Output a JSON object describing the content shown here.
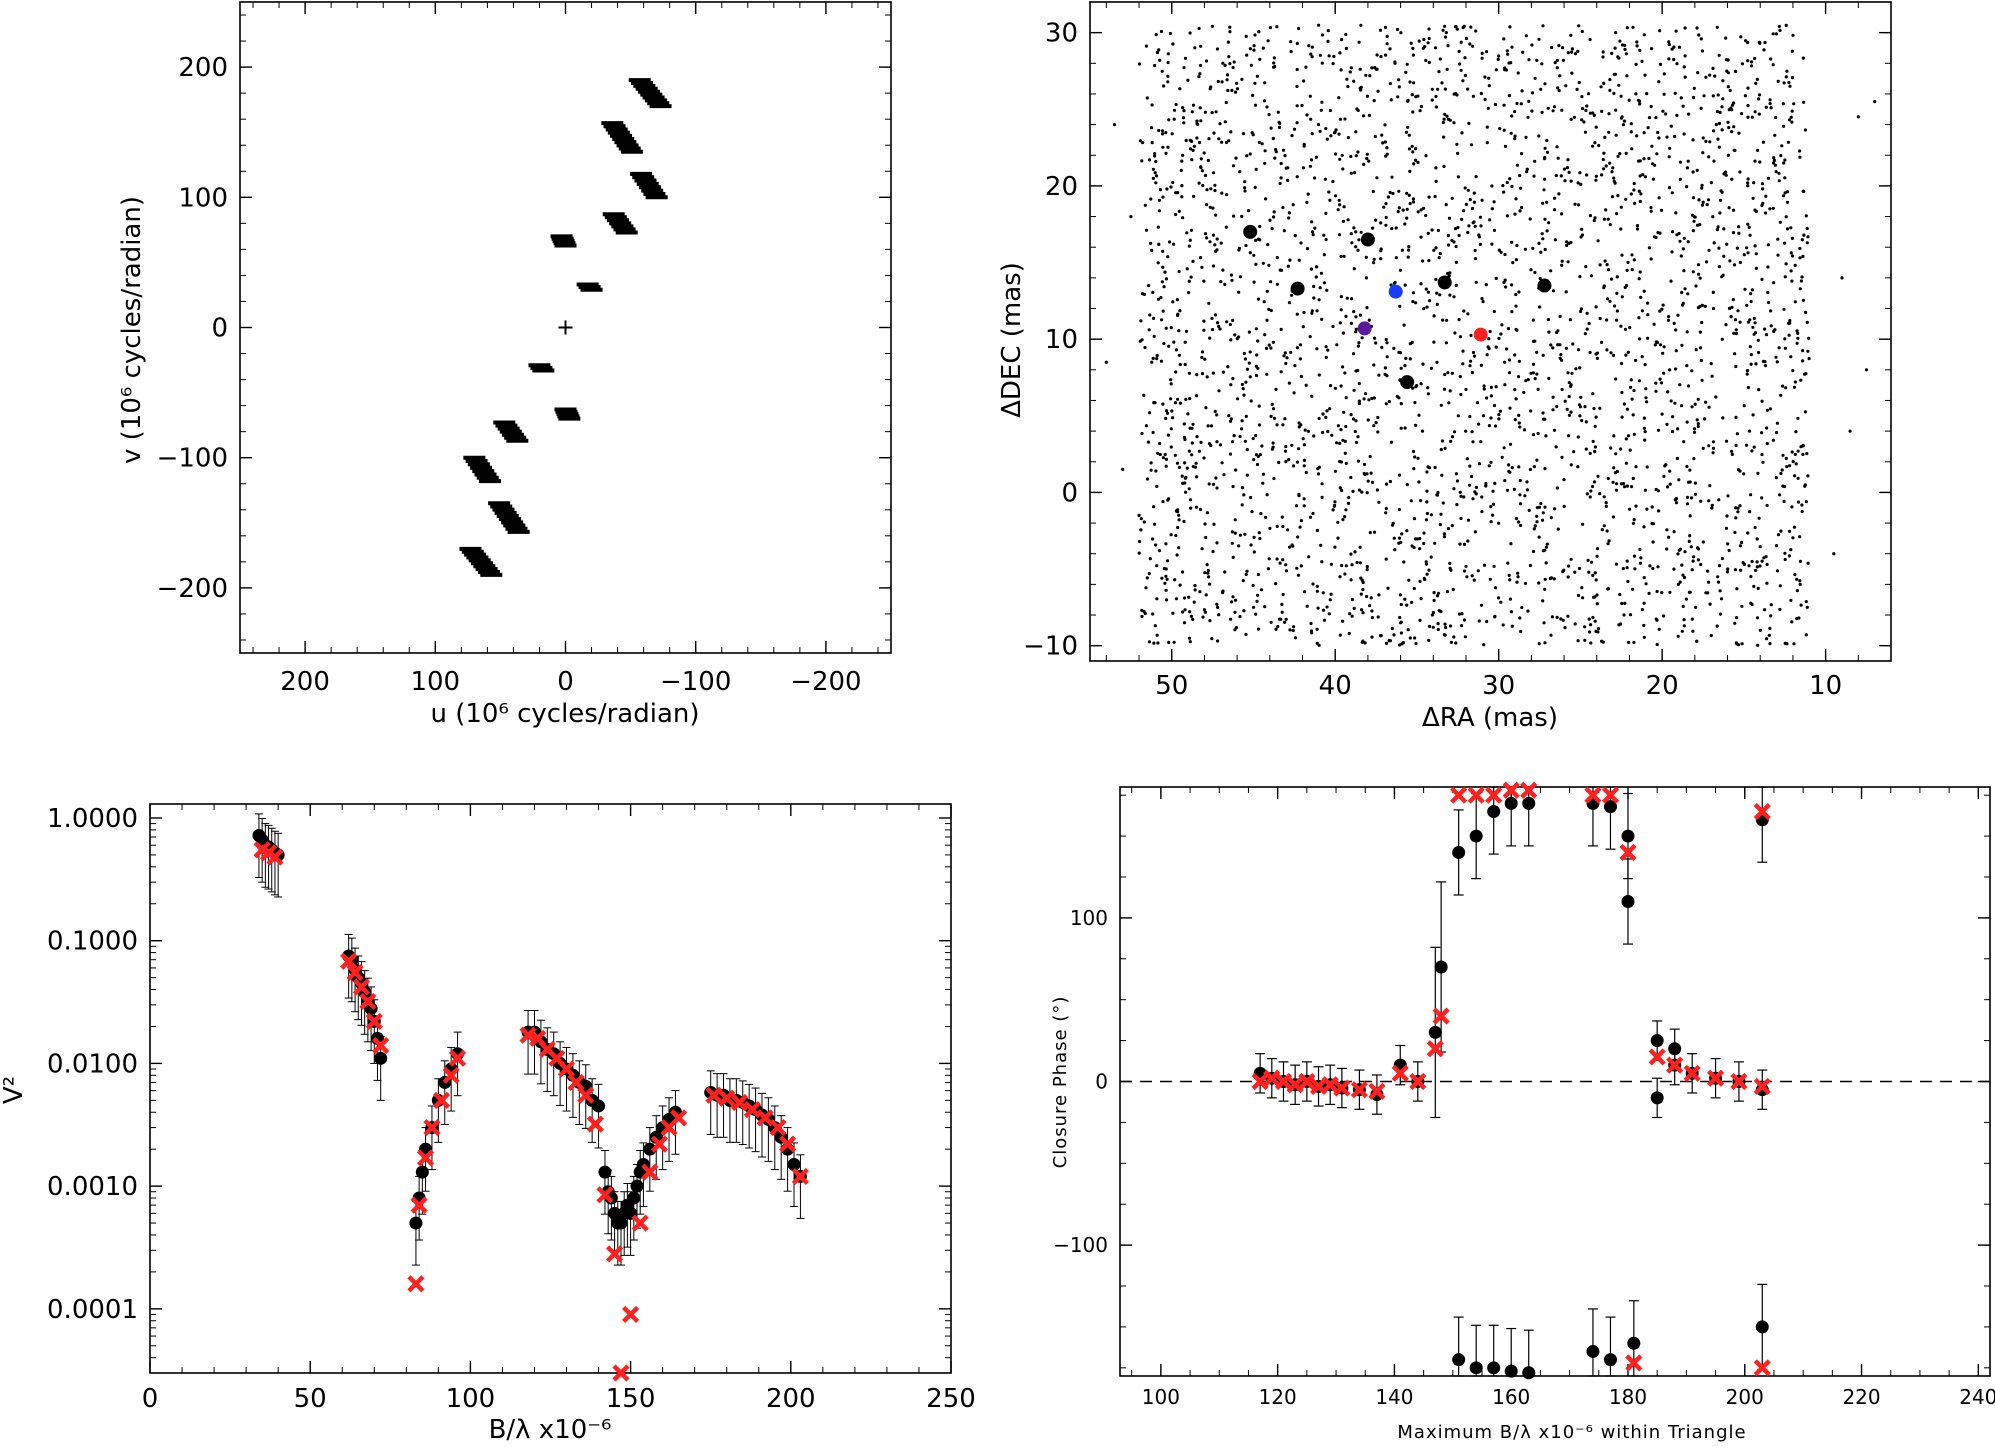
{
  "chart_data": [
    {
      "id": "uv",
      "type": "scatter",
      "xlabel": "u (10⁶ cycles/radian)",
      "ylabel": "v (10⁶ cycles/radian)",
      "xlim": [
        250,
        -250
      ],
      "ylim": [
        -250,
        250
      ],
      "xticks": [
        200,
        100,
        0,
        -100,
        -200
      ],
      "xtick_labels": [
        "200",
        "100",
        "0",
        "−100",
        "−200"
      ],
      "yticks": [
        -200,
        -100,
        0,
        100,
        200
      ],
      "ytick_labels": [
        "−200",
        "−100",
        "0",
        "100",
        "200"
      ],
      "center_marker": [
        0,
        0
      ],
      "groups": [
        {
          "u_range": [
            -73,
            -57
          ],
          "v_range": [
            170,
            190
          ],
          "n": 10
        },
        {
          "u_range": [
            -51,
            -36
          ],
          "v_range": [
            135,
            157
          ],
          "n": 10
        },
        {
          "u_range": [
            -70,
            -58
          ],
          "v_range": [
            100,
            118
          ],
          "n": 8
        },
        {
          "u_range": [
            -47,
            -37
          ],
          "v_range": [
            73,
            87
          ],
          "n": 7
        },
        {
          "u_range": [
            0,
            3
          ],
          "v_range": [
            63,
            70
          ],
          "n": 5
        },
        {
          "u_range": [
            -20,
            -17
          ],
          "v_range": [
            29,
            33
          ],
          "n": 3
        },
        {
          "u_range": [
            17,
            20
          ],
          "v_range": [
            -33,
            -29
          ],
          "n": 3
        },
        {
          "u_range": [
            -3,
            0
          ],
          "v_range": [
            -70,
            -63
          ],
          "n": 5
        },
        {
          "u_range": [
            37,
            47
          ],
          "v_range": [
            -87,
            -73
          ],
          "n": 7
        },
        {
          "u_range": [
            58,
            70
          ],
          "v_range": [
            -118,
            -100
          ],
          "n": 8
        },
        {
          "u_range": [
            36,
            51
          ],
          "v_range": [
            -157,
            -135
          ],
          "n": 10
        },
        {
          "u_range": [
            57,
            73
          ],
          "v_range": [
            -190,
            -170
          ],
          "n": 10
        }
      ]
    },
    {
      "id": "search",
      "type": "scatter",
      "xlabel": "ΔRA (mas)",
      "ylabel": "ΔDEC (mas)",
      "xlim": [
        55,
        6
      ],
      "ylim": [
        -11,
        32
      ],
      "xticks": [
        50,
        40,
        30,
        20,
        10
      ],
      "yticks": [
        -10,
        0,
        10,
        20,
        30
      ],
      "background_grid": {
        "ra_range": [
          11,
          52
        ],
        "dec_range": [
          -10,
          30.5
        ],
        "n_points": 3000,
        "point_color": "#000000"
      },
      "highlight_points": [
        {
          "ra": 45.2,
          "dec": 17.0,
          "color": "#000000"
        },
        {
          "ra": 38.0,
          "dec": 16.5,
          "color": "#000000"
        },
        {
          "ra": 42.3,
          "dec": 13.3,
          "color": "#000000"
        },
        {
          "ra": 33.3,
          "dec": 13.7,
          "color": "#000000"
        },
        {
          "ra": 27.2,
          "dec": 13.5,
          "color": "#000000"
        },
        {
          "ra": 36.3,
          "dec": 13.1,
          "color": "#1a3cff"
        },
        {
          "ra": 38.2,
          "dec": 10.7,
          "color": "#5a1a9a"
        },
        {
          "ra": 31.1,
          "dec": 10.3,
          "color": "#ff2020"
        },
        {
          "ra": 35.6,
          "dec": 7.2,
          "color": "#000000"
        }
      ]
    },
    {
      "id": "v2",
      "type": "scatter",
      "xlabel": "B/λ x10⁻⁶",
      "ylabel": "V²",
      "xlim": [
        0,
        250
      ],
      "ylim_log": [
        3e-05,
        1.3
      ],
      "yscale": "log",
      "xticks": [
        0,
        50,
        100,
        150,
        200,
        250
      ],
      "yticks": [
        0.0001,
        0.001,
        0.01,
        0.1,
        1.0
      ],
      "ytick_labels": [
        "0.0001",
        "0.0010",
        "0.0100",
        "0.1000",
        "1.0000"
      ],
      "series": [
        {
          "name": "",
          "color": "#000000",
          "points": [
            [
              34,
              0.72
            ],
            [
              35,
              0.66
            ],
            [
              36,
              0.6
            ],
            [
              37,
              0.58
            ],
            [
              38,
              0.55
            ],
            [
              39,
              0.52
            ],
            [
              40,
              0.5
            ],
            [
              62,
              0.075
            ],
            [
              63,
              0.07
            ],
            [
              64,
              0.058
            ],
            [
              65,
              0.05
            ],
            [
              66,
              0.045
            ],
            [
              67,
              0.038
            ],
            [
              68,
              0.033
            ],
            [
              69,
              0.028
            ],
            [
              70,
              0.022
            ],
            [
              71,
              0.016
            ],
            [
              72,
              0.011
            ],
            [
              83,
              0.0005
            ],
            [
              84,
              0.0008
            ],
            [
              85,
              0.0013
            ],
            [
              86,
              0.002
            ],
            [
              88,
              0.003
            ],
            [
              90,
              0.005
            ],
            [
              92,
              0.007
            ],
            [
              94,
              0.009
            ],
            [
              96,
              0.012
            ],
            [
              118,
              0.018
            ],
            [
              120,
              0.018
            ],
            [
              122,
              0.015
            ],
            [
              124,
              0.013
            ],
            [
              126,
              0.012
            ],
            [
              128,
              0.01
            ],
            [
              130,
              0.009
            ],
            [
              132,
              0.008
            ],
            [
              134,
              0.007
            ],
            [
              136,
              0.0065
            ],
            [
              138,
              0.005
            ],
            [
              140,
              0.0045
            ],
            [
              142,
              0.0013
            ],
            [
              143,
              0.0009
            ],
            [
              144,
              0.0008
            ],
            [
              145,
              0.0006
            ],
            [
              146,
              0.0005
            ],
            [
              147,
              0.0005
            ],
            [
              148,
              0.0006
            ],
            [
              149,
              0.0007
            ],
            [
              150,
              0.0006
            ],
            [
              151,
              0.0008
            ],
            [
              152,
              0.001
            ],
            [
              153,
              0.0013
            ],
            [
              154,
              0.0015
            ],
            [
              156,
              0.002
            ],
            [
              158,
              0.0025
            ],
            [
              160,
              0.003
            ],
            [
              162,
              0.0035
            ],
            [
              164,
              0.004
            ],
            [
              175,
              0.0058
            ],
            [
              177,
              0.0055
            ],
            [
              179,
              0.0055
            ],
            [
              181,
              0.005
            ],
            [
              183,
              0.005
            ],
            [
              185,
              0.0048
            ],
            [
              187,
              0.0045
            ],
            [
              189,
              0.0042
            ],
            [
              191,
              0.0038
            ],
            [
              193,
              0.0035
            ],
            [
              195,
              0.003
            ],
            [
              197,
              0.0025
            ],
            [
              199,
              0.002
            ],
            [
              201,
              0.0015
            ],
            [
              203,
              0.0012
            ]
          ]
        },
        {
          "name": "",
          "color": "#ff2020",
          "points": [
            [
              35,
              0.55
            ],
            [
              37,
              0.52
            ],
            [
              39,
              0.48
            ],
            [
              62,
              0.068
            ],
            [
              64,
              0.055
            ],
            [
              66,
              0.042
            ],
            [
              68,
              0.032
            ],
            [
              70,
              0.022
            ],
            [
              72,
              0.014
            ],
            [
              83,
              0.00016
            ],
            [
              84,
              0.0007
            ],
            [
              86,
              0.0017
            ],
            [
              88,
              0.003
            ],
            [
              91,
              0.005
            ],
            [
              94,
              0.008
            ],
            [
              96,
              0.011
            ],
            [
              118,
              0.017
            ],
            [
              121,
              0.016
            ],
            [
              124,
              0.013
            ],
            [
              127,
              0.011
            ],
            [
              130,
              0.009
            ],
            [
              133,
              0.007
            ],
            [
              136,
              0.0055
            ],
            [
              139,
              0.0032
            ],
            [
              142,
              0.00085
            ],
            [
              145,
              0.00028
            ],
            [
              147,
              3e-05
            ],
            [
              150,
              9e-05
            ],
            [
              153,
              0.0005
            ],
            [
              156,
              0.0013
            ],
            [
              159,
              0.0022
            ],
            [
              162,
              0.003
            ],
            [
              165,
              0.0036
            ],
            [
              176,
              0.0055
            ],
            [
              180,
              0.0052
            ],
            [
              184,
              0.0048
            ],
            [
              188,
              0.0042
            ],
            [
              192,
              0.0036
            ],
            [
              196,
              0.003
            ],
            [
              199,
              0.0022
            ],
            [
              203,
              0.0012
            ]
          ]
        }
      ]
    },
    {
      "id": "cp",
      "type": "scatter",
      "xlabel": "Maximum B/λ x10⁻⁶ within Triangle",
      "ylabel": "Closure Phase (°)",
      "xlim": [
        93,
        242
      ],
      "ylim": [
        -180,
        180
      ],
      "xticks": [
        100,
        120,
        140,
        160,
        180,
        200,
        220,
        240
      ],
      "yticks": [
        -100,
        0,
        100
      ],
      "ytick_labels": [
        "−100",
        "0",
        "100"
      ],
      "zero_line": true,
      "series": [
        {
          "name": "",
          "color": "#000000",
          "points": [
            [
              117,
              5
            ],
            [
              119,
              2
            ],
            [
              121,
              0
            ],
            [
              123,
              -2
            ],
            [
              125,
              0
            ],
            [
              127,
              -3
            ],
            [
              129,
              -2
            ],
            [
              131,
              -4
            ],
            [
              134,
              -5
            ],
            [
              137,
              -8
            ],
            [
              141,
              10
            ],
            [
              144,
              0
            ],
            [
              147,
              30
            ],
            [
              148,
              70
            ],
            [
              151,
              140
            ],
            [
              151,
              -170
            ],
            [
              154,
              150
            ],
            [
              154,
              -175
            ],
            [
              157,
              165
            ],
            [
              157,
              -175
            ],
            [
              160,
              170
            ],
            [
              160,
              -177
            ],
            [
              163,
              170
            ],
            [
              163,
              -178
            ],
            [
              174,
              170
            ],
            [
              174,
              -165
            ],
            [
              177,
              168
            ],
            [
              177,
              -170
            ],
            [
              180,
              150
            ],
            [
              180,
              110
            ],
            [
              181,
              -160
            ],
            [
              185,
              25
            ],
            [
              185,
              -10
            ],
            [
              188,
              10
            ],
            [
              188,
              20
            ],
            [
              191,
              5
            ],
            [
              195,
              2
            ],
            [
              199,
              0
            ],
            [
              203,
              -5
            ],
            [
              203,
              -150
            ],
            [
              203,
              160
            ]
          ]
        },
        {
          "name": "",
          "color": "#ff2020",
          "points": [
            [
              117,
              0
            ],
            [
              119,
              2
            ],
            [
              121,
              0
            ],
            [
              123,
              -2
            ],
            [
              125,
              0
            ],
            [
              127,
              -3
            ],
            [
              129,
              -2
            ],
            [
              131,
              -4
            ],
            [
              134,
              -5
            ],
            [
              137,
              -6
            ],
            [
              141,
              5
            ],
            [
              144,
              0
            ],
            [
              147,
              20
            ],
            [
              148,
              40
            ],
            [
              151,
              175
            ],
            [
              154,
              175
            ],
            [
              157,
              175
            ],
            [
              160,
              178
            ],
            [
              163,
              178
            ],
            [
              174,
              175
            ],
            [
              177,
              175
            ],
            [
              180,
              140
            ],
            [
              181,
              -172
            ],
            [
              185,
              15
            ],
            [
              188,
              10
            ],
            [
              191,
              5
            ],
            [
              195,
              2
            ],
            [
              199,
              0
            ],
            [
              203,
              -3
            ],
            [
              203,
              -175
            ],
            [
              203,
              165
            ]
          ]
        }
      ]
    }
  ]
}
